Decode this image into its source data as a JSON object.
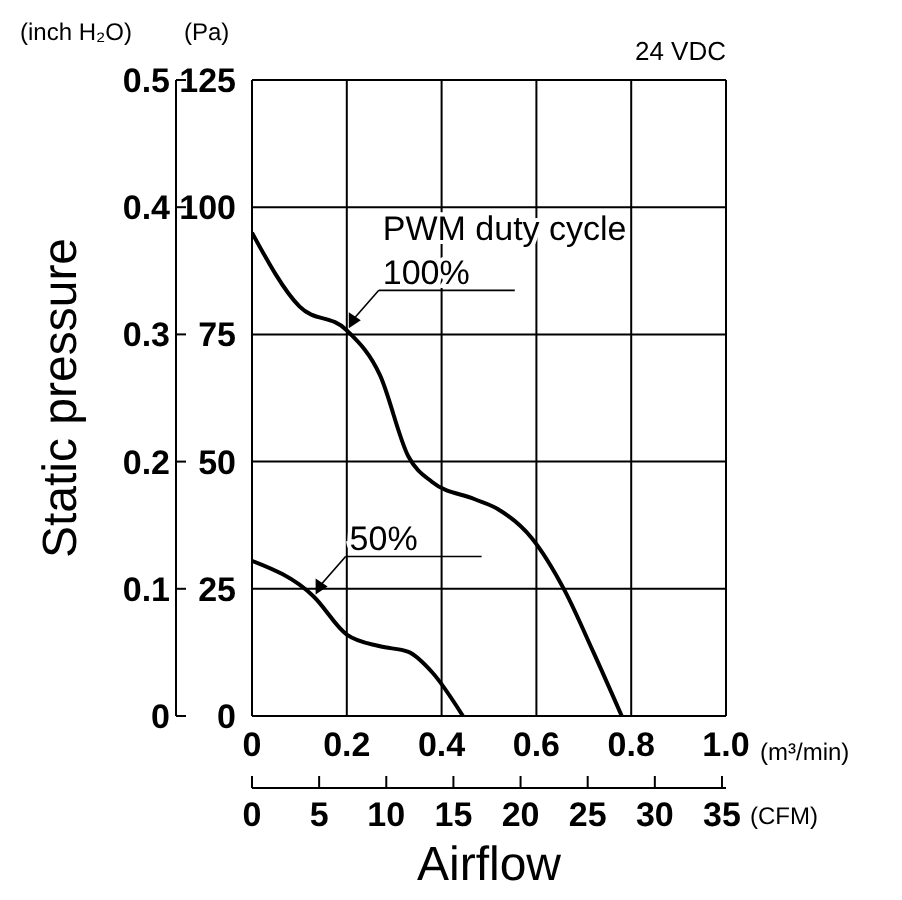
{
  "chart_data": {
    "type": "line",
    "xlabel": "Airflow",
    "ylabel": "Static pressure",
    "y2label": "(Pa)",
    "x2label": "(CFM)",
    "legend_title": "PWM duty cycle",
    "annotations": [
      "24 VDC",
      "(inch H₂O)",
      "(m³/min)"
    ],
    "xlim": [
      0,
      1
    ],
    "xticks": [
      0,
      0.2,
      0.4,
      0.6,
      0.8,
      {
        "value": 1,
        "label": "1.0"
      }
    ],
    "ylim": [
      0,
      0.5
    ],
    "yticks": [
      0,
      0.1,
      0.2,
      0.3,
      0.4,
      0.5
    ],
    "y2lim": [
      0,
      125
    ],
    "y2ticks": [
      0,
      25,
      50,
      75,
      100,
      125
    ],
    "x2lim": [
      0,
      35.3
    ],
    "x2ticks": [
      0,
      5,
      10,
      15,
      20,
      25,
      30,
      35
    ],
    "grid": true,
    "marker": "none",
    "line_style": "solid",
    "series": [
      {
        "name": "100%",
        "color": "#000000",
        "axis": "y2",
        "x": [
          0,
          0.1,
          0.2,
          0.27,
          0.33,
          0.38,
          0.47,
          0.52,
          0.59,
          0.66,
          0.72,
          0.78
        ],
        "values": [
          95,
          80.5,
          75.8,
          67,
          51,
          46,
          42.6,
          40.6,
          35,
          24.6,
          12.6,
          0
        ]
      },
      {
        "name": "50%",
        "color": "#000000",
        "axis": "y2",
        "x": [
          0,
          0.13,
          0.2,
          0.27,
          0.33,
          0.38,
          0.445
        ],
        "values": [
          30.5,
          23.5,
          16,
          13.7,
          12.6,
          8.6,
          0
        ]
      }
    ]
  }
}
